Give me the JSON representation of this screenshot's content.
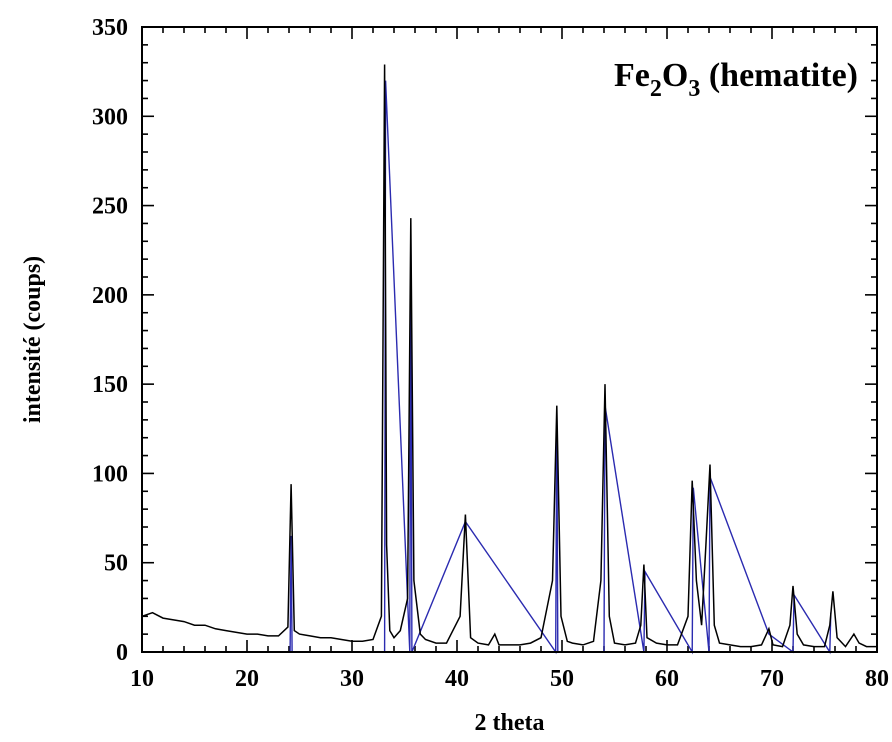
{
  "chart_data": {
    "type": "line",
    "title_main": "Fe",
    "title_sub1": "2",
    "title_mid": "O",
    "title_sub2": "3",
    "title_tail": " (hematite)",
    "xlabel": "2 theta",
    "ylabel": "intensité (coups)",
    "xlim": [
      10,
      80
    ],
    "ylim": [
      0,
      350
    ],
    "xticks": [
      10,
      20,
      30,
      40,
      50,
      60,
      70,
      80
    ],
    "yticks": [
      0,
      50,
      100,
      150,
      200,
      250,
      300,
      350
    ],
    "grid": false,
    "colors": {
      "measured": "#000000",
      "fit": "#2b2bb0"
    },
    "series": [
      {
        "x": [
          10,
          11,
          12,
          13,
          14,
          15,
          16,
          17,
          18,
          19,
          20,
          21,
          22,
          23,
          23.9,
          24.2,
          24.5,
          25,
          26,
          27,
          28,
          29,
          30,
          31,
          32,
          32.8,
          33.1,
          33.3,
          33.6,
          34,
          34.6,
          35.3,
          35.6,
          35.9,
          36.5,
          37,
          38,
          39,
          40.3,
          40.8,
          41.3,
          42,
          43,
          43.6,
          44,
          45,
          46,
          47,
          48,
          49.1,
          49.5,
          49.9,
          50.5,
          51,
          52,
          53,
          53.7,
          54.1,
          54.5,
          55,
          56,
          57,
          57.5,
          57.8,
          58.1,
          59,
          60,
          61,
          62,
          62.4,
          62.8,
          63.3,
          63.7,
          64.1,
          64.5,
          65,
          66,
          67,
          68,
          69,
          69.7,
          70.1,
          71,
          71.7,
          72,
          72.4,
          73,
          74,
          75,
          75.5,
          75.8,
          76.2,
          77,
          77.8,
          78.3,
          79,
          80
        ],
        "values": [
          20,
          22,
          19,
          18,
          17,
          15,
          15,
          13,
          12,
          11,
          10,
          10,
          9,
          9,
          14,
          94,
          12,
          10,
          9,
          8,
          8,
          7,
          6,
          6,
          7,
          20,
          329,
          60,
          12,
          8,
          12,
          30,
          243,
          40,
          10,
          7,
          5,
          5,
          20,
          77,
          8,
          5,
          4,
          10,
          4,
          4,
          4,
          5,
          8,
          40,
          138,
          20,
          6,
          5,
          4,
          6,
          40,
          150,
          20,
          5,
          4,
          5,
          15,
          49,
          8,
          5,
          4,
          4,
          20,
          96,
          40,
          15,
          60,
          105,
          15,
          5,
          4,
          3,
          3,
          4,
          13,
          4,
          3,
          15,
          37,
          10,
          4,
          3,
          3,
          15,
          34,
          8,
          3,
          10,
          5,
          3,
          3
        ]
      },
      {
        "x": [
          24.1,
          24.2,
          24.3,
          33.1,
          33.2,
          35.5,
          35.6,
          35.7,
          40.8,
          49.4,
          49.5,
          49.6,
          54.0,
          54.1,
          57.8,
          57.9,
          62.4,
          62.5,
          64.0,
          64.1,
          69.7,
          72.0,
          72.1,
          75.5,
          75.6
        ],
        "values": [
          0,
          65,
          0,
          0,
          320,
          0,
          235,
          0,
          73,
          0,
          135,
          0,
          0,
          138,
          0,
          45,
          0,
          92,
          0,
          98,
          10,
          0,
          32,
          0,
          22
        ]
      }
    ]
  }
}
